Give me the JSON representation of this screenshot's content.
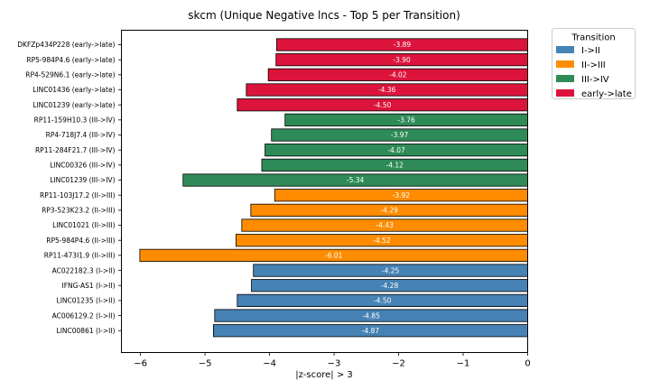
{
  "chart_data": {
    "type": "bar",
    "orientation": "horizontal",
    "title": "skcm (Unique Negative lncs - Top 5 per Transition)",
    "xlabel": "|z-score| > 3",
    "ylabel": "",
    "xlim": [
      -6.3,
      0
    ],
    "xticks": [
      -6,
      -5,
      -4,
      -3,
      -2,
      -1,
      0
    ],
    "grid": false,
    "legend": {
      "title": "Transition",
      "placement": "outside-top-right",
      "entries": [
        {
          "label": "I->II",
          "color": "#4682b4"
        },
        {
          "label": "II->III",
          "color": "#ff8c00"
        },
        {
          "label": "III->IV",
          "color": "#2e8b57"
        },
        {
          "label": "early->late",
          "color": "#dc143c"
        }
      ]
    },
    "bars": [
      {
        "label": "DKFZp434P228 (early->late)",
        "value": -3.89,
        "value_label": "-3.89",
        "group": "early->late"
      },
      {
        "label": "RP5-984P4.6 (early->late)",
        "value": -3.9,
        "value_label": "-3.90",
        "group": "early->late"
      },
      {
        "label": "RP4-529N6.1 (early->late)",
        "value": -4.02,
        "value_label": "-4.02",
        "group": "early->late"
      },
      {
        "label": "LINC01436 (early->late)",
        "value": -4.36,
        "value_label": "-4.36",
        "group": "early->late"
      },
      {
        "label": "LINC01239 (early->late)",
        "value": -4.5,
        "value_label": "-4.50",
        "group": "early->late"
      },
      {
        "label": "RP11-159H10.3 (III->IV)",
        "value": -3.76,
        "value_label": "-3.76",
        "group": "III->IV"
      },
      {
        "label": "RP4-718J7.4 (III->IV)",
        "value": -3.97,
        "value_label": "-3.97",
        "group": "III->IV"
      },
      {
        "label": "RP11-284F21.7 (III->IV)",
        "value": -4.07,
        "value_label": "-4.07",
        "group": "III->IV"
      },
      {
        "label": "LINC00326 (III->IV)",
        "value": -4.12,
        "value_label": "-4.12",
        "group": "III->IV"
      },
      {
        "label": "LINC01239 (III->IV)",
        "value": -5.34,
        "value_label": "-5.34",
        "group": "III->IV"
      },
      {
        "label": "RP11-103J17.2 (II->III)",
        "value": -3.92,
        "value_label": "-3.92",
        "group": "II->III"
      },
      {
        "label": "RP3-523K23.2 (II->III)",
        "value": -4.29,
        "value_label": "-4.29",
        "group": "II->III"
      },
      {
        "label": "LINC01021 (II->III)",
        "value": -4.43,
        "value_label": "-4.43",
        "group": "II->III"
      },
      {
        "label": "RP5-984P4.6 (II->III)",
        "value": -4.52,
        "value_label": "-4.52",
        "group": "II->III"
      },
      {
        "label": "RP11-473I1.9 (II->III)",
        "value": -6.01,
        "value_label": "-6.01",
        "group": "II->III"
      },
      {
        "label": "AC022182.3 (I->II)",
        "value": -4.25,
        "value_label": "-4.25",
        "group": "I->II"
      },
      {
        "label": "IFNG-AS1 (I->II)",
        "value": -4.28,
        "value_label": "-4.28",
        "group": "I->II"
      },
      {
        "label": "LINC01235 (I->II)",
        "value": -4.5,
        "value_label": "-4.50",
        "group": "I->II"
      },
      {
        "label": "AC006129.2 (I->II)",
        "value": -4.85,
        "value_label": "-4.85",
        "group": "I->II"
      },
      {
        "label": "LINC00861 (I->II)",
        "value": -4.87,
        "value_label": "-4.87",
        "group": "I->II"
      }
    ]
  }
}
